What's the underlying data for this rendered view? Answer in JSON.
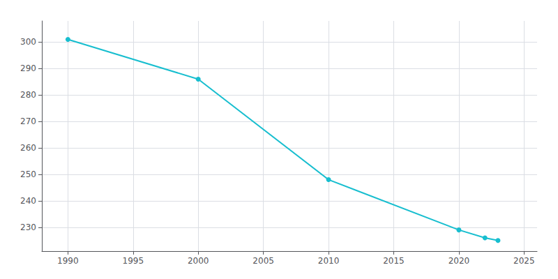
{
  "chart_data": {
    "type": "line",
    "x": [
      1990,
      2000,
      2010,
      2020,
      2022,
      2023
    ],
    "values": [
      301,
      286,
      248,
      229,
      226,
      225
    ],
    "color": "#17becf",
    "marker": "circle",
    "xlim": [
      1988,
      2026
    ],
    "xticks": [
      1990,
      1995,
      2000,
      2005,
      2010,
      2015,
      2020,
      2025
    ],
    "ylim": [
      221,
      308
    ],
    "yticks": [
      230,
      240,
      250,
      260,
      270,
      280,
      290,
      300
    ],
    "grid": true
  }
}
